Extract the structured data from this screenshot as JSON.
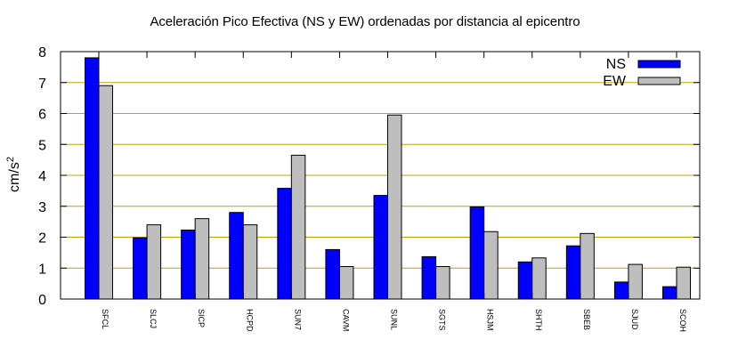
{
  "chart_data": {
    "type": "bar",
    "title": "Aceleración Pico Efectiva (NS y EW) ordenadas por distancia al epicentro",
    "xlabel": "",
    "ylabel": "cm/s",
    "ylabel_superscript": "2",
    "ylim": [
      0,
      8
    ],
    "yticks": [
      0,
      1,
      2,
      3,
      4,
      5,
      6,
      7,
      8
    ],
    "yticks_labels": [
      "0",
      "1",
      "2",
      "3",
      "4",
      "5",
      "6",
      "7",
      "8"
    ],
    "grid": true,
    "legend_position": "top-right",
    "categories": [
      "SFCL",
      "SLCJ",
      "SICP",
      "HCPD",
      "SUN7",
      "CAVM",
      "SUNL",
      "SGTS",
      "HSJM",
      "SHTH",
      "SBEB",
      "SJUD",
      "SCOH"
    ],
    "series": [
      {
        "name": "NS",
        "color": "#0000ff",
        "values": [
          7.8,
          1.98,
          2.23,
          2.8,
          3.58,
          1.6,
          3.35,
          1.37,
          2.98,
          1.2,
          1.72,
          0.55,
          0.4
        ]
      },
      {
        "name": "EW",
        "color": "#bebebe",
        "values": [
          6.9,
          2.4,
          2.6,
          2.4,
          4.65,
          1.05,
          5.95,
          1.05,
          2.18,
          1.33,
          2.12,
          1.12,
          1.03
        ]
      }
    ],
    "gridline_color": "#c8a000"
  }
}
